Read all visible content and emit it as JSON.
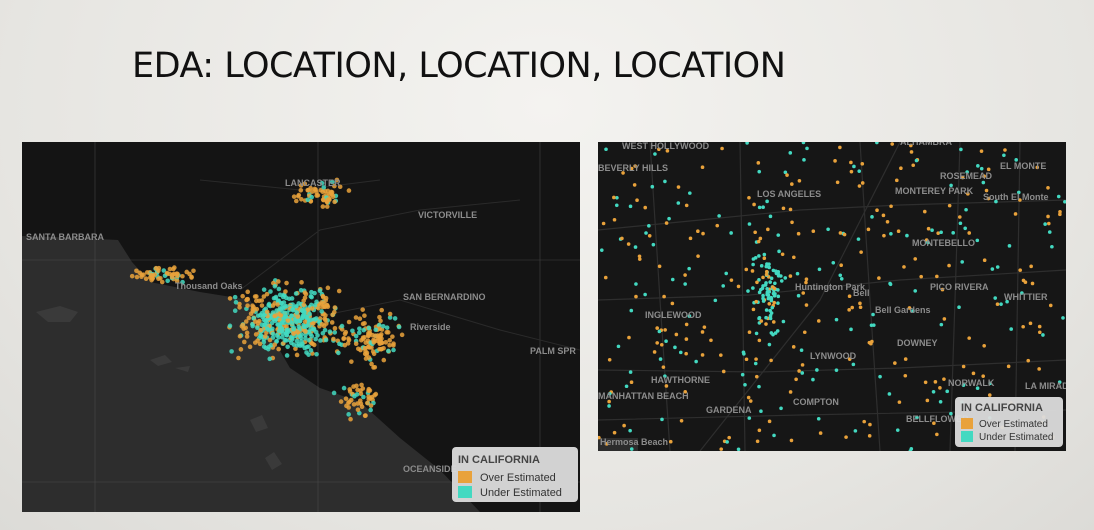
{
  "title": "EDA: LOCATION, LOCATION, LOCATION",
  "maps": [
    {
      "labels": [
        "LANCASTER",
        "VICTORVILLE",
        "SANTA BARBARA",
        "Thousand Oaks",
        "SAN BERNARDINO",
        "Riverside",
        "PALM SPR",
        "OCEANSIDE"
      ],
      "legend": {
        "title": "IN CALIFORNIA",
        "items": [
          {
            "name": "Over Estimated",
            "color": "#e9a23b"
          },
          {
            "name": "Under Estimated",
            "color": "#43d9c1"
          }
        ]
      }
    },
    {
      "labels": [
        "WEST HOLLYWOOD",
        "BEVERLY HILLS",
        "LOS ANGELES",
        "ALHAMBRA",
        "ROSEMEAD",
        "EL MONTE",
        "MONTEREY PARK",
        "South El Monte",
        "MONTEBELLO",
        "Huntington Park",
        "Bell",
        "PICO RIVERA",
        "WHITTIER",
        "INGLEWOOD",
        "Bell Gardens",
        "DOWNEY",
        "LYNWOOD",
        "HAWTHORNE",
        "NORWALK",
        "LA MIRADA",
        "MANHATTAN BEACH",
        "GARDENA",
        "COMPTON",
        "BELLFLOWER",
        "Hermosa Beach"
      ],
      "legend": {
        "title": "IN CALIFORNIA",
        "items": [
          {
            "name": "Over Estimated",
            "color": "#e9a23b"
          },
          {
            "name": "Under Estimated",
            "color": "#43d9c1"
          }
        ]
      }
    }
  ]
}
